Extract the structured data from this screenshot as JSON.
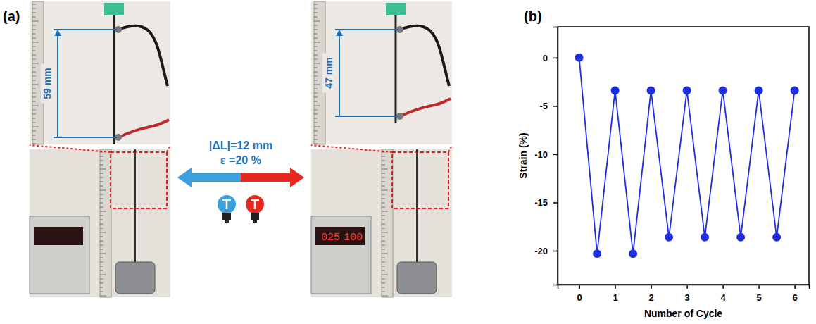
{
  "chart_data": {
    "type": "line",
    "x_label": "Number of Cycle",
    "y_label": "Strain (%)",
    "x": [
      0,
      0.5,
      1,
      1.5,
      2,
      2.5,
      3,
      3.5,
      4,
      4.5,
      5,
      5.5,
      6
    ],
    "values": [
      0,
      -20.3,
      -3.4,
      -20.3,
      -3.4,
      -18.6,
      -3.4,
      -18.6,
      -3.4,
      -18.6,
      -3.4,
      -18.6,
      -3.4
    ],
    "color": "#1f2fe0",
    "marker": "circle",
    "line_style": "solid",
    "grid": false,
    "xlim": [
      -0.6,
      6.4
    ],
    "xticks": [
      0,
      1,
      2,
      3,
      4,
      5,
      6
    ],
    "ylim": [
      -23.5,
      3.2
    ],
    "yticks": [
      0,
      -5,
      -10,
      -15,
      -20
    ]
  },
  "figure": {
    "panel_labels": [
      "(a)",
      "(b)"
    ],
    "length_before": "59 mm",
    "length_after": "47 mm",
    "delta_length": "|ΔL|=12 mm",
    "strain": "ε =20 %",
    "display_readings": [
      "025",
      "100"
    ]
  }
}
